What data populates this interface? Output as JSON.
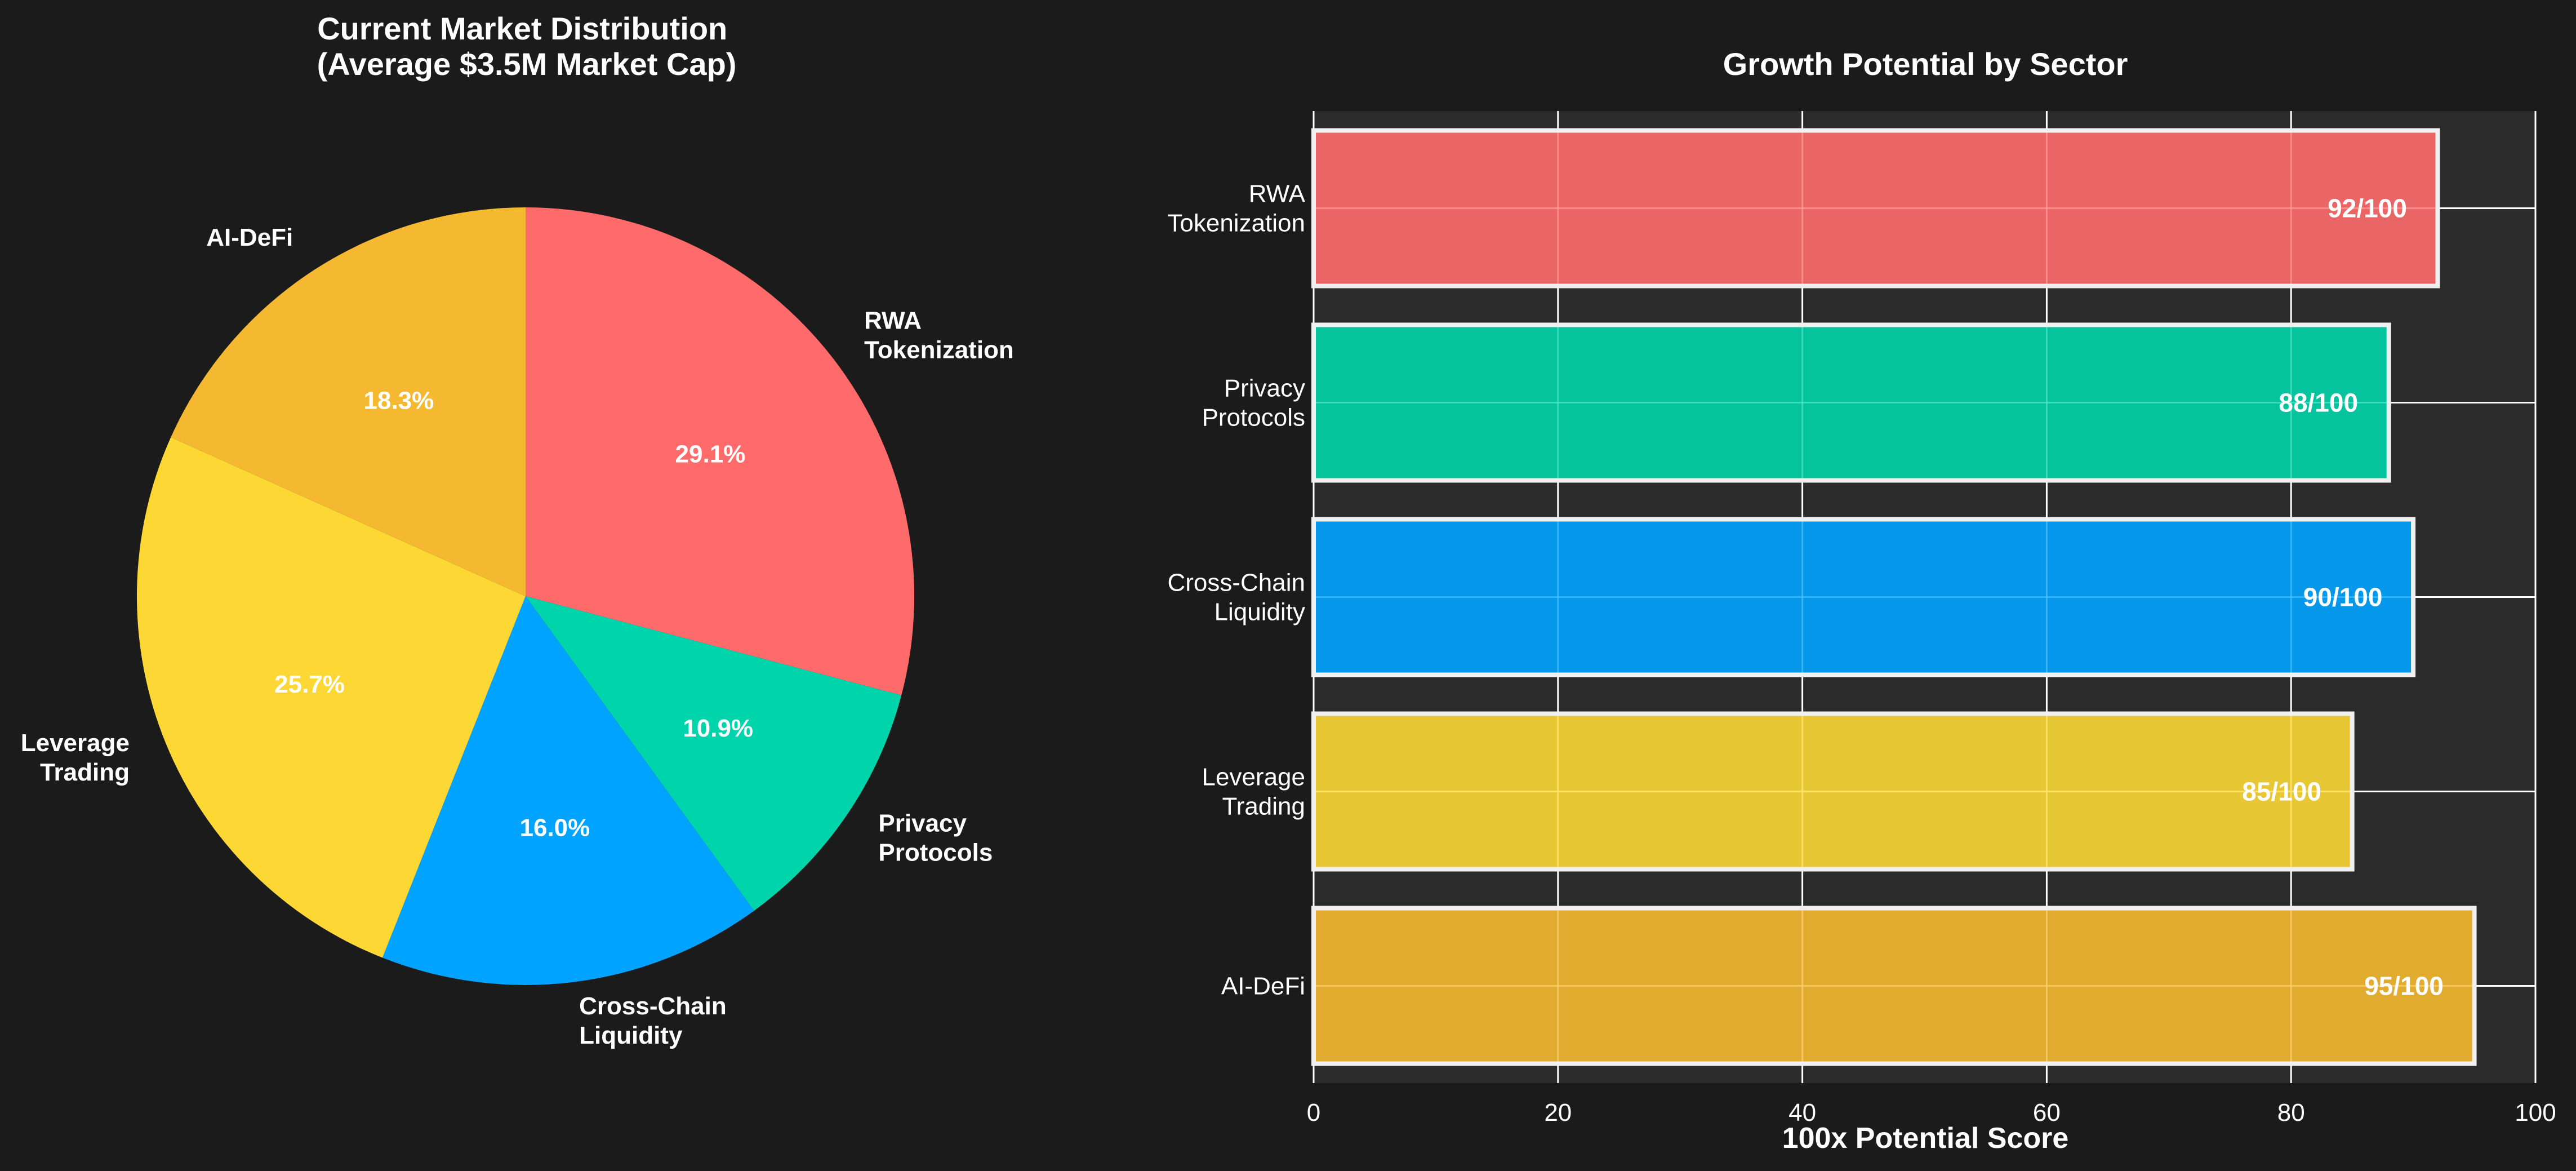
{
  "theme": {
    "background": "#1b1b1b",
    "plot_background": "#2b2b2b",
    "grid_color": "#ffffff",
    "text_color": "#ffffff",
    "bar_edge_color": "#f0f0f0"
  },
  "chart_data": [
    {
      "type": "pie",
      "title": "Current Market Distribution\n(Average $3.5M Market Cap)",
      "title_lines": [
        "Current Market Distribution",
        "(Average $3.5M Market Cap)"
      ],
      "start_angle_deg": 90,
      "direction": "clockwise",
      "slices": [
        {
          "label": "RWA Tokenization",
          "label_lines": [
            "RWA",
            "Tokenization"
          ],
          "value": 29.1,
          "pct_label": "29.1%",
          "color": "#ff6b6b"
        },
        {
          "label": "Privacy Protocols",
          "label_lines": [
            "Privacy",
            "Protocols"
          ],
          "value": 10.9,
          "pct_label": "10.9%",
          "color": "#00d4aa"
        },
        {
          "label": "Cross-Chain Liquidity",
          "label_lines": [
            "Cross-Chain",
            "Liquidity"
          ],
          "value": 16.0,
          "pct_label": "16.0%",
          "color": "#00a3ff"
        },
        {
          "label": "Leverage Trading",
          "label_lines": [
            "Leverage",
            "Trading"
          ],
          "value": 25.7,
          "pct_label": "25.7%",
          "color": "#fdd835"
        },
        {
          "label": "AI-DeFi",
          "label_lines": [
            "AI-DeFi"
          ],
          "value": 18.3,
          "pct_label": "18.3%",
          "color": "#f4b930"
        }
      ]
    },
    {
      "type": "bar",
      "orientation": "horizontal",
      "title": "Growth Potential by Sector",
      "xlabel": "100x Potential Score",
      "ylabel": "",
      "xlim": [
        0,
        100
      ],
      "xticks": [
        0,
        20,
        40,
        60,
        80,
        100
      ],
      "grid": true,
      "categories": [
        "RWA Tokenization",
        "Privacy Protocols",
        "Cross-Chain Liquidity",
        "Leverage Trading",
        "AI-DeFi"
      ],
      "category_lines": [
        [
          "RWA",
          "Tokenization"
        ],
        [
          "Privacy",
          "Protocols"
        ],
        [
          "Cross-Chain",
          "Liquidity"
        ],
        [
          "Leverage",
          "Trading"
        ],
        [
          "AI-DeFi"
        ]
      ],
      "values": [
        92,
        88,
        90,
        85,
        95
      ],
      "value_labels": [
        "92/100",
        "88/100",
        "90/100",
        "85/100",
        "95/100"
      ],
      "colors": [
        "#ff6b6b",
        "#00d4aa",
        "#00a3ff",
        "#fdd835",
        "#f4b930"
      ],
      "alpha": 0.9
    }
  ]
}
